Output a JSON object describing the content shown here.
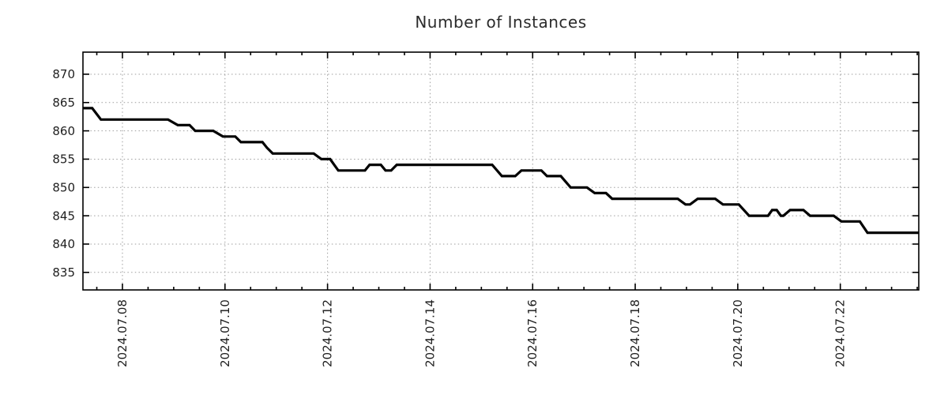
{
  "chart_data": {
    "type": "line",
    "title": "Number of Instances",
    "legend": "none",
    "grid": true,
    "x_axis": {
      "unit": "days since 2024-07-07 00:00",
      "range": [
        0.23,
        16.53
      ],
      "minor_tick_step": 0.5,
      "major_ticks": [
        {
          "day": 1,
          "label": "2024.07.08"
        },
        {
          "day": 3,
          "label": "2024.07.10"
        },
        {
          "day": 5,
          "label": "2024.07.12"
        },
        {
          "day": 7,
          "label": "2024.07.14"
        },
        {
          "day": 9,
          "label": "2024.07.16"
        },
        {
          "day": 11,
          "label": "2024.07.18"
        },
        {
          "day": 13,
          "label": "2024.07.20"
        },
        {
          "day": 15,
          "label": "2024.07.22"
        }
      ]
    },
    "y_axis": {
      "range": [
        831.9,
        873.9
      ],
      "major_ticks": [
        835,
        840,
        845,
        850,
        855,
        860,
        865,
        870
      ]
    },
    "series": [
      {
        "name": "instances",
        "color": "#000000",
        "points": [
          [
            0.23,
            864
          ],
          [
            0.41,
            864
          ],
          [
            0.58,
            862
          ],
          [
            1.89,
            862
          ],
          [
            2.08,
            861
          ],
          [
            2.31,
            861
          ],
          [
            2.42,
            860
          ],
          [
            2.77,
            860
          ],
          [
            2.96,
            859
          ],
          [
            3.2,
            859
          ],
          [
            3.31,
            858
          ],
          [
            3.73,
            858
          ],
          [
            3.82,
            857
          ],
          [
            3.93,
            856
          ],
          [
            4.73,
            856
          ],
          [
            4.88,
            855
          ],
          [
            5.05,
            855
          ],
          [
            5.13,
            854
          ],
          [
            5.21,
            853
          ],
          [
            5.73,
            853
          ],
          [
            5.82,
            854
          ],
          [
            6.04,
            854
          ],
          [
            6.13,
            853
          ],
          [
            6.24,
            853
          ],
          [
            6.35,
            854
          ],
          [
            8.21,
            854
          ],
          [
            8.4,
            852
          ],
          [
            8.66,
            852
          ],
          [
            8.78,
            853
          ],
          [
            9.17,
            853
          ],
          [
            9.28,
            852
          ],
          [
            9.55,
            852
          ],
          [
            9.74,
            850
          ],
          [
            10.06,
            850
          ],
          [
            10.21,
            849
          ],
          [
            10.43,
            849
          ],
          [
            10.55,
            848
          ],
          [
            11.83,
            848
          ],
          [
            11.98,
            847
          ],
          [
            12.07,
            847
          ],
          [
            12.22,
            848
          ],
          [
            12.56,
            848
          ],
          [
            12.71,
            847
          ],
          [
            13.02,
            847
          ],
          [
            13.22,
            845
          ],
          [
            13.59,
            845
          ],
          [
            13.67,
            846
          ],
          [
            13.76,
            846
          ],
          [
            13.84,
            845
          ],
          [
            13.89,
            845
          ],
          [
            14.02,
            846
          ],
          [
            14.28,
            846
          ],
          [
            14.41,
            845
          ],
          [
            14.87,
            845
          ],
          [
            15.02,
            844
          ],
          [
            15.38,
            844
          ],
          [
            15.53,
            842
          ],
          [
            16.53,
            842
          ]
        ]
      }
    ],
    "style": {
      "line_color": "#000000",
      "grid_color": "#9e9e9e",
      "axis_color": "#000000",
      "text_color": "#1f1f1f",
      "background": "#ffffff"
    }
  }
}
